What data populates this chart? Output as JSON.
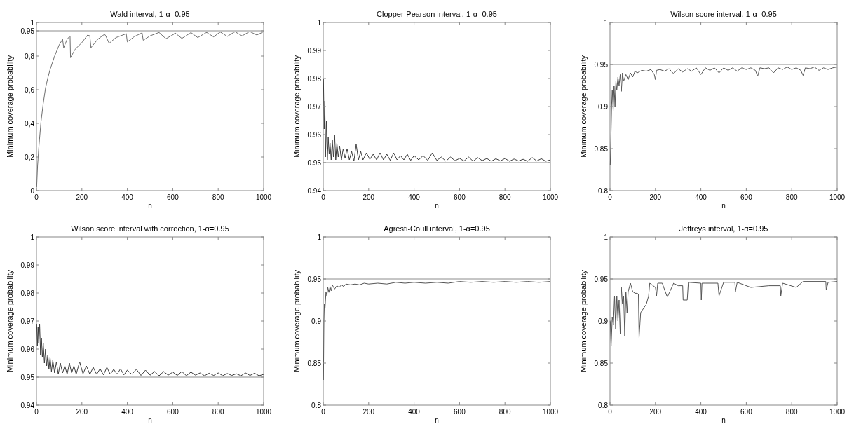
{
  "chart_data": [
    {
      "type": "line",
      "title": "Wald interval, 1-α=0.95",
      "xlabel": "n",
      "ylabel": "Minimum coverage probability",
      "xlim": [
        0,
        1000
      ],
      "xticks": [
        0,
        200,
        400,
        600,
        800,
        1000
      ],
      "ylim": [
        0,
        1
      ],
      "yticks": [
        0,
        {
          "value": 0.2,
          "label": "0,2"
        },
        {
          "value": 0.4,
          "label": "0,4"
        },
        {
          "value": 0.6,
          "label": "0,6"
        },
        {
          "value": 0.8,
          "label": "0,8"
        },
        0.95,
        1
      ],
      "ref_lines": [
        {
          "axis": "y",
          "value": 0.95,
          "color": "#8c8c8c"
        }
      ],
      "series": [
        {
          "color": "#6e6e6e",
          "x": [
            1,
            5,
            10,
            20,
            30,
            40,
            50,
            60,
            80,
            100,
            115,
            120,
            135,
            148,
            150,
            170,
            200,
            225,
            235,
            240,
            270,
            300,
            305,
            320,
            350,
            390,
            395,
            400,
            430,
            460,
            465,
            470,
            500,
            535,
            540,
            570,
            605,
            610,
            640,
            675,
            680,
            710,
            745,
            750,
            780,
            805,
            810,
            840,
            870,
            875,
            905,
            935,
            940,
            970,
            1000
          ],
          "values": [
            0.02,
            0.15,
            0.25,
            0.41,
            0.52,
            0.61,
            0.67,
            0.72,
            0.8,
            0.866,
            0.9,
            0.85,
            0.9,
            0.92,
            0.79,
            0.84,
            0.88,
            0.925,
            0.92,
            0.85,
            0.9,
            0.93,
            0.92,
            0.876,
            0.91,
            0.93,
            0.935,
            0.884,
            0.915,
            0.935,
            0.938,
            0.894,
            0.92,
            0.938,
            0.94,
            0.903,
            0.93,
            0.938,
            0.905,
            0.935,
            0.94,
            0.91,
            0.938,
            0.94,
            0.914,
            0.94,
            0.942,
            0.917,
            0.942,
            0.944,
            0.92,
            0.943,
            0.945,
            0.925,
            0.945
          ]
        }
      ]
    },
    {
      "type": "line",
      "title": "Clopper-Pearson interval, 1-α=0.95",
      "xlabel": "n",
      "ylabel": "Minimum coverage probability",
      "xlim": [
        0,
        1000
      ],
      "xticks": [
        0,
        200,
        400,
        600,
        800,
        1000
      ],
      "ylim": [
        0.94,
        1
      ],
      "yticks": [
        0.94,
        0.95,
        0.96,
        0.97,
        0.98,
        0.99,
        1
      ],
      "ref_lines": [
        {
          "axis": "y",
          "value": 0.95
        }
      ],
      "series": [
        {
          "color": "#3c3c3c",
          "x": [
            1,
            4,
            7,
            10,
            14,
            18,
            22,
            26,
            30,
            35,
            40,
            45,
            50,
            55,
            60,
            66,
            72,
            80,
            88,
            96,
            105,
            115,
            125,
            135,
            145,
            155,
            165,
            175,
            190,
            205,
            220,
            235,
            250,
            265,
            280,
            295,
            310,
            325,
            340,
            355,
            370,
            385,
            400,
            420,
            440,
            460,
            480,
            500,
            520,
            540,
            560,
            580,
            600,
            620,
            640,
            660,
            680,
            700,
            720,
            740,
            760,
            780,
            800,
            820,
            840,
            860,
            880,
            900,
            920,
            940,
            960,
            980,
            1000
          ],
          "values": [
            0.98,
            0.962,
            0.972,
            0.952,
            0.965,
            0.951,
            0.959,
            0.953,
            0.957,
            0.951,
            0.958,
            0.952,
            0.96,
            0.951,
            0.957,
            0.952,
            0.956,
            0.951,
            0.955,
            0.9515,
            0.955,
            0.951,
            0.954,
            0.9505,
            0.9565,
            0.951,
            0.954,
            0.951,
            0.9535,
            0.9512,
            0.953,
            0.951,
            0.9535,
            0.951,
            0.953,
            0.9508,
            0.9535,
            0.951,
            0.9525,
            0.951,
            0.953,
            0.9508,
            0.9525,
            0.951,
            0.9525,
            0.9508,
            0.9535,
            0.9508,
            0.952,
            0.9505,
            0.952,
            0.9507,
            0.9515,
            0.9506,
            0.952,
            0.9505,
            0.9518,
            0.9507,
            0.9515,
            0.9505,
            0.9514,
            0.9506,
            0.9515,
            0.9505,
            0.9513,
            0.9506,
            0.9512,
            0.9505,
            0.9518,
            0.9506,
            0.9514,
            0.9505,
            0.951
          ]
        }
      ]
    },
    {
      "type": "line",
      "title": "Wilson score interval, 1-α=0.95",
      "xlabel": "n",
      "ylabel": "Minimum coverage probability",
      "xlim": [
        0,
        1000
      ],
      "xticks": [
        0,
        200,
        400,
        600,
        800,
        1000
      ],
      "ylim": [
        0.8,
        1
      ],
      "yticks": [
        0.8,
        0.85,
        0.9,
        0.95,
        1
      ],
      "ref_lines": [
        {
          "axis": "y",
          "value": 0.95
        }
      ],
      "series": [
        {
          "color": "#555555",
          "x": [
            1,
            4,
            7,
            10,
            14,
            18,
            22,
            26,
            30,
            35,
            40,
            45,
            50,
            55,
            60,
            70,
            80,
            90,
            100,
            110,
            120,
            140,
            160,
            180,
            195,
            200,
            205,
            220,
            240,
            260,
            280,
            300,
            320,
            340,
            360,
            380,
            400,
            420,
            440,
            460,
            480,
            500,
            520,
            540,
            560,
            580,
            600,
            620,
            640,
            650,
            660,
            680,
            700,
            720,
            740,
            760,
            780,
            800,
            820,
            840,
            850,
            860,
            880,
            900,
            920,
            940,
            960,
            980,
            1000
          ],
          "values": [
            0.83,
            0.86,
            0.9,
            0.92,
            0.895,
            0.925,
            0.9,
            0.93,
            0.92,
            0.935,
            0.925,
            0.938,
            0.918,
            0.94,
            0.93,
            0.938,
            0.932,
            0.94,
            0.935,
            0.942,
            0.94,
            0.943,
            0.942,
            0.944,
            0.938,
            0.932,
            0.943,
            0.944,
            0.942,
            0.945,
            0.939,
            0.945,
            0.941,
            0.945,
            0.942,
            0.946,
            0.938,
            0.946,
            0.943,
            0.946,
            0.94,
            0.946,
            0.943,
            0.946,
            0.942,
            0.946,
            0.944,
            0.946,
            0.943,
            0.936,
            0.946,
            0.945,
            0.946,
            0.94,
            0.946,
            0.944,
            0.947,
            0.944,
            0.946,
            0.943,
            0.937,
            0.946,
            0.945,
            0.947,
            0.943,
            0.946,
            0.944,
            0.946,
            0.947
          ]
        }
      ]
    },
    {
      "type": "line",
      "title": "Wilson score interval with correction, 1-α=0.95",
      "xlabel": "n",
      "ylabel": "Minimum coverage probability",
      "xlim": [
        0,
        1000
      ],
      "xticks": [
        0,
        200,
        400,
        600,
        800,
        1000
      ],
      "ylim": [
        0.94,
        1
      ],
      "yticks": [
        0.94,
        0.95,
        0.96,
        0.97,
        0.98,
        0.99,
        1
      ],
      "ref_lines": [
        {
          "axis": "y",
          "value": 0.95
        }
      ],
      "series": [
        {
          "color": "#3c3c3c",
          "x": [
            1,
            4,
            7,
            10,
            14,
            18,
            22,
            26,
            30,
            35,
            40,
            45,
            50,
            55,
            60,
            66,
            72,
            80,
            88,
            96,
            105,
            115,
            125,
            135,
            145,
            155,
            165,
            175,
            190,
            205,
            220,
            235,
            250,
            265,
            280,
            295,
            310,
            325,
            340,
            355,
            370,
            385,
            400,
            420,
            440,
            460,
            480,
            500,
            520,
            540,
            560,
            580,
            600,
            620,
            640,
            660,
            680,
            700,
            720,
            740,
            760,
            780,
            800,
            820,
            840,
            860,
            880,
            900,
            920,
            940,
            960,
            980,
            1000
          ],
          "values": [
            0.969,
            0.961,
            0.968,
            0.962,
            0.969,
            0.958,
            0.964,
            0.957,
            0.962,
            0.955,
            0.96,
            0.954,
            0.958,
            0.953,
            0.957,
            0.952,
            0.956,
            0.9515,
            0.9555,
            0.951,
            0.955,
            0.9515,
            0.954,
            0.951,
            0.955,
            0.9515,
            0.954,
            0.951,
            0.9555,
            0.9512,
            0.954,
            0.951,
            0.9535,
            0.951,
            0.953,
            0.9508,
            0.9535,
            0.951,
            0.9528,
            0.951,
            0.953,
            0.9508,
            0.9525,
            0.951,
            0.9528,
            0.9506,
            0.9525,
            0.9507,
            0.952,
            0.9505,
            0.952,
            0.9507,
            0.9518,
            0.9506,
            0.952,
            0.9505,
            0.9518,
            0.9507,
            0.9515,
            0.9505,
            0.9514,
            0.9506,
            0.9515,
            0.9505,
            0.9513,
            0.9506,
            0.9512,
            0.9505,
            0.9515,
            0.9506,
            0.9514,
            0.9505,
            0.951
          ]
        }
      ]
    },
    {
      "type": "line",
      "title": "Agresti-Coull interval, 1-α=0.95",
      "xlabel": "n",
      "ylabel": "Minimum coverage probability",
      "xlim": [
        0,
        1000
      ],
      "xticks": [
        0,
        200,
        400,
        600,
        800,
        1000
      ],
      "ylim": [
        0.8,
        1
      ],
      "yticks": [
        0.8,
        0.85,
        0.9,
        0.95,
        1
      ],
      "ref_lines": [
        {
          "axis": "y",
          "value": 0.95
        }
      ],
      "series": [
        {
          "color": "#555555",
          "x": [
            1,
            3,
            5,
            8,
            12,
            16,
            20,
            25,
            30,
            35,
            40,
            50,
            60,
            70,
            80,
            90,
            100,
            120,
            140,
            160,
            180,
            200,
            240,
            280,
            320,
            360,
            400,
            450,
            500,
            550,
            600,
            650,
            700,
            750,
            800,
            850,
            900,
            950,
            1000
          ],
          "values": [
            0.83,
            0.9,
            0.92,
            0.915,
            0.935,
            0.93,
            0.94,
            0.934,
            0.941,
            0.936,
            0.943,
            0.938,
            0.942,
            0.94,
            0.943,
            0.941,
            0.944,
            0.943,
            0.944,
            0.943,
            0.945,
            0.944,
            0.945,
            0.944,
            0.946,
            0.945,
            0.946,
            0.945,
            0.946,
            0.945,
            0.947,
            0.946,
            0.947,
            0.946,
            0.947,
            0.946,
            0.947,
            0.946,
            0.947
          ]
        }
      ]
    },
    {
      "type": "line",
      "title": "Jeffreys interval, 1-α=0.95",
      "xlabel": "n",
      "ylabel": "Minimum coverage probability",
      "xlim": [
        0,
        1000
      ],
      "xticks": [
        0,
        200,
        400,
        600,
        800,
        1000
      ],
      "ylim": [
        0.8,
        1
      ],
      "yticks": [
        0.8,
        0.85,
        0.9,
        0.95,
        1
      ],
      "ref_lines": [
        {
          "axis": "y",
          "value": 0.95
        }
      ],
      "series": [
        {
          "color": "#555555",
          "x": [
            1,
            5,
            10,
            15,
            20,
            25,
            30,
            35,
            40,
            45,
            50,
            55,
            60,
            65,
            70,
            75,
            80,
            90,
            100,
            110,
            120,
            125,
            128,
            135,
            160,
            170,
            175,
            200,
            205,
            210,
            230,
            250,
            255,
            280,
            300,
            320,
            322,
            340,
            345,
            400,
            402,
            405,
            420,
            475,
            480,
            500,
            550,
            552,
            560,
            620,
            700,
            750,
            752,
            760,
            820,
            850,
            950,
            952,
            960,
            1000
          ],
          "values": [
            0.9,
            0.87,
            0.905,
            0.895,
            0.93,
            0.89,
            0.93,
            0.9,
            0.925,
            0.885,
            0.94,
            0.92,
            0.93,
            0.882,
            0.935,
            0.91,
            0.935,
            0.945,
            0.935,
            0.933,
            0.933,
            0.932,
            0.88,
            0.91,
            0.92,
            0.93,
            0.945,
            0.94,
            0.93,
            0.945,
            0.945,
            0.93,
            0.93,
            0.945,
            0.942,
            0.942,
            0.925,
            0.925,
            0.946,
            0.945,
            0.925,
            0.945,
            0.945,
            0.945,
            0.93,
            0.946,
            0.946,
            0.935,
            0.946,
            0.94,
            0.942,
            0.942,
            0.93,
            0.945,
            0.94,
            0.947,
            0.947,
            0.937,
            0.946,
            0.947
          ]
        }
      ]
    }
  ]
}
